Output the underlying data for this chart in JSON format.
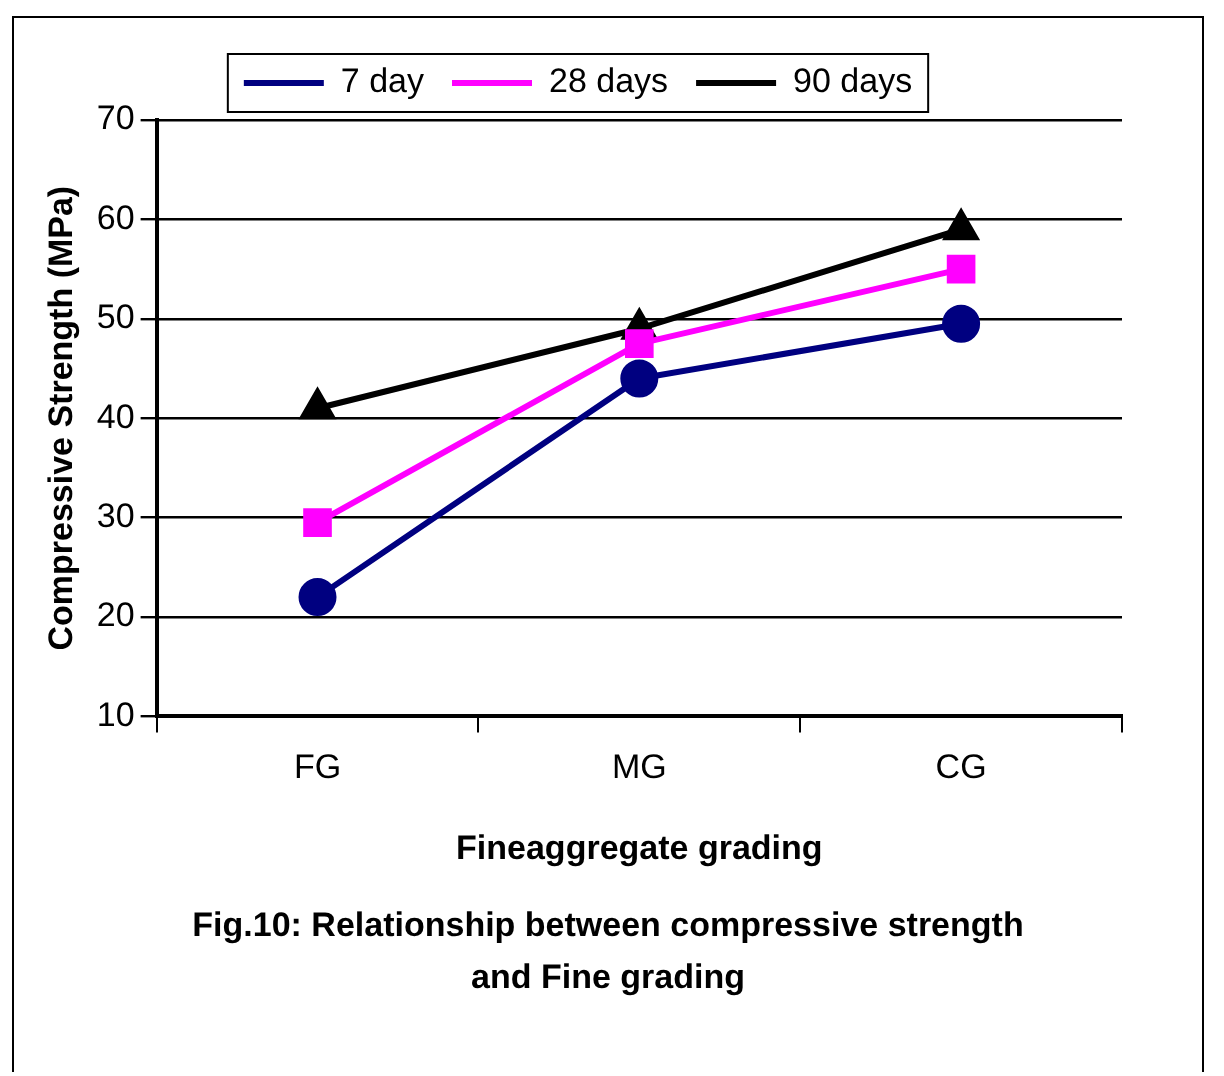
{
  "chart_data": {
    "type": "line",
    "xlabel": "Fineaggregate grading",
    "ylabel": "Compressive Strength (MPa)",
    "categories": [
      "FG",
      "MG",
      "CG"
    ],
    "series": [
      {
        "name": "7 day",
        "color": "#000080",
        "marker": "circle",
        "values": [
          22,
          44,
          49.5
        ]
      },
      {
        "name": "28 days",
        "color": "#ff00ff",
        "marker": "square",
        "values": [
          29.5,
          47.5,
          55
        ]
      },
      {
        "name": "90 days",
        "color": "#000000",
        "marker": "triangle",
        "values": [
          41,
          49,
          59
        ]
      }
    ],
    "ylim": [
      10,
      70
    ],
    "yticks": [
      10,
      20,
      30,
      40,
      50,
      60,
      70
    ],
    "grid": "y",
    "legend": "top",
    "annotations": [
      "Fig.10: Relationship between compressive strength and Fine  grading"
    ]
  }
}
